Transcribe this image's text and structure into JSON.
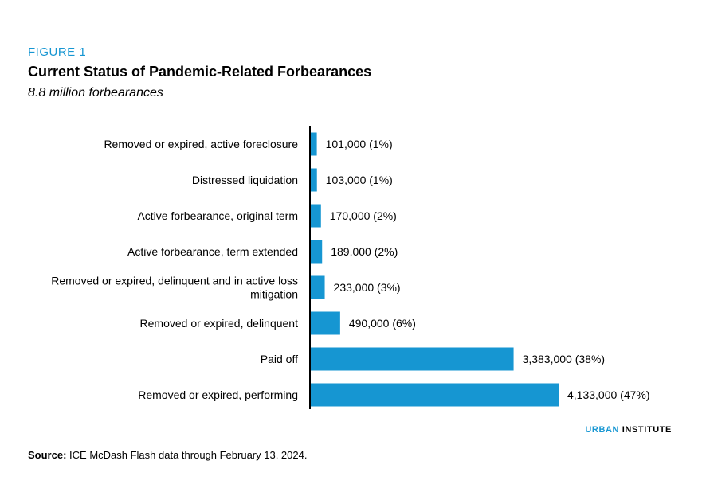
{
  "figure_label": "FIGURE 1",
  "title": "Current Status of Pandemic-Related Forbearances",
  "subtitle": "8.8 million forbearances",
  "source_label": "Source:",
  "source_text": "ICE McDash Flash data through February 13, 2024.",
  "brand": {
    "part1": "URBAN",
    "part2": "INSTITUTE"
  },
  "colors": {
    "bar": "#1696d2",
    "accent": "#1696d2",
    "axis": "#000000"
  },
  "chart_data": {
    "type": "bar",
    "orientation": "horizontal",
    "categories": [
      "Removed or expired, active foreclosure",
      "Distressed liquidation",
      "Active forbearance, original term",
      "Active forbearance, term extended",
      "Removed or expired, delinquent and in active loss mitigation",
      "Removed or expired, delinquent",
      "Paid off",
      "Removed or expired, performing"
    ],
    "values": [
      101000,
      103000,
      170000,
      189000,
      233000,
      490000,
      3383000,
      4133000
    ],
    "data_labels": [
      "101,000 (1%)",
      "103,000 (1%)",
      "170,000 (2%)",
      "189,000 (2%)",
      "233,000 (3%)",
      "490,000 (6%)",
      "3,383,000 (38%)",
      "4,133,000 (47%)"
    ],
    "title": "Current Status of Pandemic-Related Forbearances",
    "subtitle": "8.8 million forbearances",
    "xlim": [
      0,
      4133000
    ],
    "grid": false,
    "legend": "none"
  }
}
